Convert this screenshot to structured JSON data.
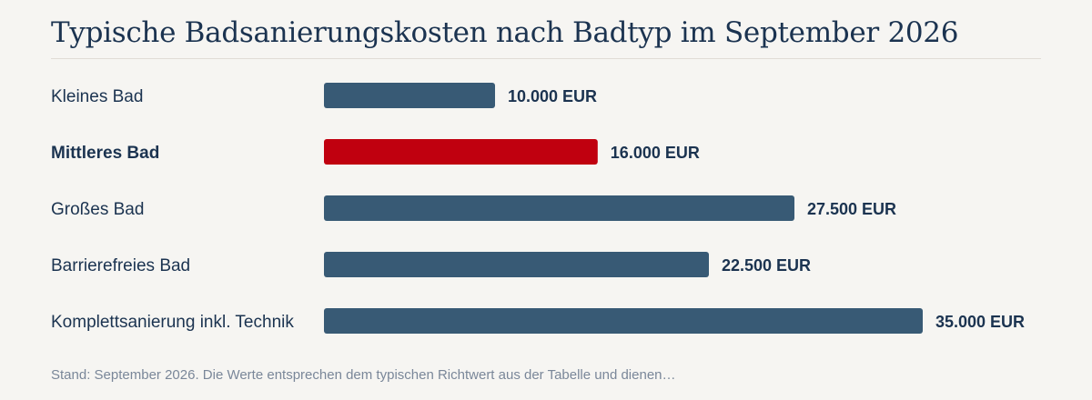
{
  "chart_data": {
    "type": "bar",
    "orientation": "horizontal",
    "title": "Typische Badsanierungskosten nach Badtyp im September 2026",
    "categories": [
      "Kleines Bad",
      "Mittleres Bad",
      "Großes Bad",
      "Barrierefreies Bad",
      "Komplettsanierung inkl. Technik"
    ],
    "values": [
      10000,
      16000,
      27500,
      22500,
      35000
    ],
    "value_labels": [
      "10.000 EUR",
      "16.000 EUR",
      "27.500 EUR",
      "22.500 EUR",
      "35.000 EUR"
    ],
    "highlight_index": 1,
    "xlim": [
      0,
      35000
    ],
    "grid": false,
    "legend": "none",
    "colors": {
      "bar": "#385a75",
      "highlight": "#c0000f",
      "text": "#1b3350"
    }
  },
  "footnote": "Stand: September 2026. Die Werte entsprechen dem typischen Richtwert aus der Tabelle und dienen…"
}
